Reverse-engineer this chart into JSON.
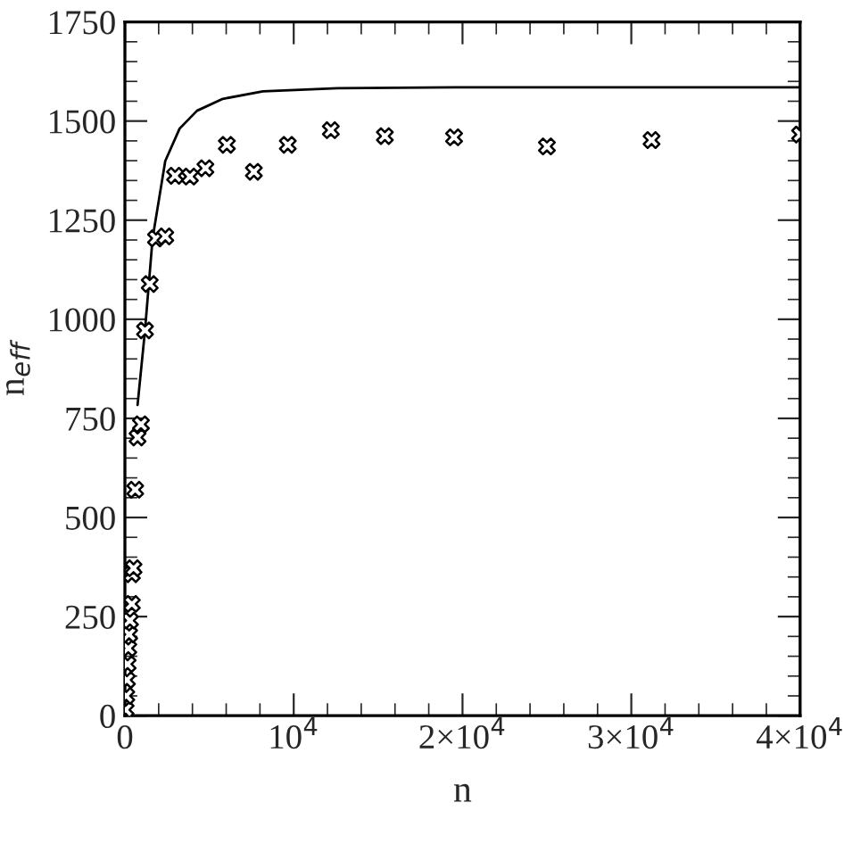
{
  "chart_data": {
    "type": "scatter",
    "xlabel": "n",
    "ylabel": "n$_{eff}$",
    "xlim": [
      0,
      40000
    ],
    "ylim": [
      0,
      1750
    ],
    "xticks": [
      0,
      {
        "value": 10000,
        "label": "10$^{4}$"
      },
      {
        "value": 20000,
        "label": "2×10$^{4}$"
      },
      {
        "value": 30000,
        "label": "3×10$^{4}$"
      },
      {
        "value": 40000,
        "label": "4×10$^{4}$"
      }
    ],
    "yticks": [
      0,
      250,
      500,
      750,
      1000,
      1250,
      1500,
      1750
    ],
    "grid": false,
    "series": [
      {
        "color": "#000000",
        "marker": "cross",
        "x": [
          40,
          80,
          120,
          160,
          200,
          250,
          300,
          410,
          410,
          510,
          610,
          750,
          950,
          1190,
          1470,
          1840,
          2390,
          2970,
          3850,
          4770,
          6040,
          7640,
          9650,
          12200,
          15400,
          19500,
          25000,
          31200,
          40000
        ],
        "values": [
          15,
          50,
          90,
          130,
          170,
          205,
          240,
          282,
          357,
          372,
          570,
          702,
          735,
          972,
          1089,
          1204,
          1209,
          1362,
          1360,
          1381,
          1440,
          1372,
          1440,
          1477,
          1462,
          1459,
          1436,
          1452,
          1466
        ]
      },
      {
        "type": "line",
        "color": "#000000",
        "line_style": "solid",
        "marker": "none",
        "x": [
          750,
          1190,
          1640,
          2390,
          3240,
          4270,
          5800,
          8180,
          12600,
          20000,
          30000,
          40000
        ],
        "values": [
          784,
          972,
          1204,
          1399,
          1481,
          1526,
          1556,
          1575,
          1583,
          1585,
          1585,
          1585
        ]
      }
    ]
  }
}
